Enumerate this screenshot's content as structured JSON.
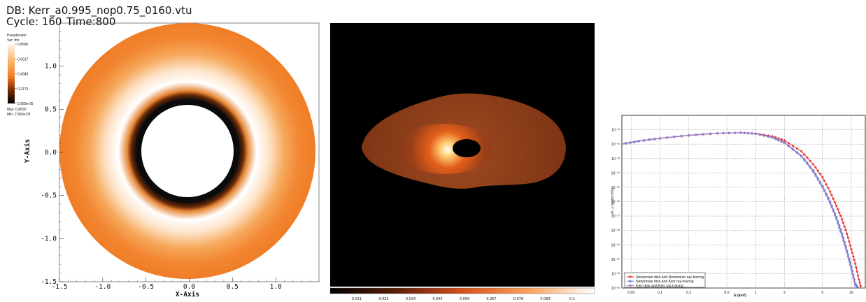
{
  "panels": {
    "visit": {
      "db_label": "DB: Kerr_a0.995_nop0.75_0160.vtu",
      "cycle_label": "Cycle: 160",
      "time_label": "Time:800",
      "legend": {
        "plot_type": "Pseudocolor",
        "var_label": "Var: rho",
        "ticks": [
          "0.8690",
          "0.6517",
          "0.4345",
          "0.2173",
          "2.960e-05"
        ],
        "max_label": "Max:  0.8690",
        "min_label": "Min:  2.960e-05"
      },
      "xlabel": "X-Axis",
      "ylabel": "Y-Axis",
      "xticks": [
        "-1.5",
        "-1.0",
        "-0.5",
        "0.0",
        "0.5",
        "1.0"
      ],
      "yticks": [
        "1.0",
        "0.5",
        "0.0",
        "-0.5",
        "-1.0",
        "-1.5"
      ],
      "colors": {
        "outer": "#f1822a",
        "mid": "#ffffff",
        "inner": "#0a0a0a"
      }
    },
    "ray": {
      "colorbar_ticks": [
        "0.011",
        "0.022",
        "0.034",
        "0.045",
        "0.056",
        "0.067",
        "0.078",
        "0.089",
        "0.1"
      ],
      "colors": {
        "background": "#000000",
        "disk": "#8a3a18",
        "hot": "#ffffff"
      }
    },
    "spectrum": {
      "xlabel": "E (keV)",
      "ylabel": "νF_ν (erg/cm²/s)",
      "ytick_labels": [
        "10⁻¹¹",
        "10⁻¹²",
        "10⁻¹³",
        "10⁻¹⁴",
        "10⁻¹⁵",
        "10⁻¹⁶",
        "10⁻¹⁷",
        "10⁻¹⁸",
        "10⁻¹⁹",
        "10⁻²⁰",
        "10⁻²¹",
        "10⁻²²"
      ],
      "xtick_labels": [
        "0.05",
        "0.1",
        "0.2",
        "0.5",
        "1",
        "2",
        "5",
        "10"
      ]
    }
  },
  "chart_data": [
    {
      "type": "heatmap",
      "title": "DB: Kerr_a0.995_nop0.75_0160.vtu",
      "xlabel": "X-Axis",
      "ylabel": "Y-Axis",
      "xlim": [
        -1.5,
        1.5
      ],
      "ylim": [
        -1.5,
        1.5
      ],
      "variable": "rho",
      "value_range": [
        2.96e-05,
        0.869
      ],
      "rings": [
        {
          "r_inner": 0.0,
          "r_outer": 0.53,
          "rho": null
        },
        {
          "r_inner": 0.53,
          "r_outer": 0.72,
          "rho": 2.96e-05
        },
        {
          "r_inner": 0.72,
          "r_outer": 1.1,
          "rho": 0.869
        },
        {
          "r_inner": 1.1,
          "r_outer": 1.5,
          "rho": 0.6517
        }
      ]
    },
    {
      "type": "heatmap",
      "colorbar_ticks": [
        0.011,
        0.022,
        0.034,
        0.045,
        0.056,
        0.067,
        0.078,
        0.089,
        0.1
      ]
    },
    {
      "type": "line",
      "xlabel": "E (keV)",
      "ylabel": "νF_ν (erg/cm²/s)",
      "xscale": "log",
      "yscale": "log",
      "xlim": [
        0.04,
        14
      ],
      "ylim": [
        1e-22,
        1e-10
      ],
      "series": [
        {
          "name": "Newtonian disk and Newtonian ray-tracing",
          "color": "#e8312a",
          "marker": "star",
          "x": [
            0.04,
            0.06,
            0.1,
            0.2,
            0.4,
            0.7,
            1.0,
            1.5,
            2.0,
            3.0,
            4.0,
            5.0,
            6.0,
            7.0,
            8.0,
            9.0,
            10.0,
            11.0,
            12.0,
            13.0
          ],
          "y": [
            1e-12,
            1.6e-12,
            2.5e-12,
            4e-12,
            5.6e-12,
            6.2e-12,
            5.5e-12,
            3.5e-12,
            1.8e-12,
            3.2e-13,
            4e-14,
            5e-15,
            5e-16,
            5e-17,
            6e-18,
            6e-19,
            5e-20,
            5e-21,
            4e-22,
            5e-23
          ]
        },
        {
          "name": "Newtonian disk and Kerr ray-tracing",
          "color": "#5f7fd0",
          "marker": "circle",
          "x": [
            0.04,
            0.06,
            0.1,
            0.2,
            0.4,
            0.7,
            1.0,
            1.5,
            2.0,
            3.0,
            4.0,
            5.0,
            6.0,
            7.0,
            8.0,
            9.0,
            10.0,
            11.0,
            12.0
          ],
          "y": [
            1e-12,
            1.6e-12,
            2.5e-12,
            4.1e-12,
            5.7e-12,
            6.2e-12,
            5.3e-12,
            3e-12,
            1.3e-12,
            1.6e-13,
            1.5e-14,
            1.2e-15,
            1e-16,
            8e-18,
            6e-19,
            4e-20,
            3e-21,
            2e-22,
            8e-23
          ]
        },
        {
          "name": "Kerr disk and Kerr ray-tracing",
          "color": "#9b7ac8",
          "marker": "star",
          "x": [
            0.04,
            0.06,
            0.1,
            0.2,
            0.4,
            0.7,
            1.0,
            1.5,
            2.0,
            3.0,
            4.0,
            5.0,
            6.0,
            7.0,
            8.0,
            9.0,
            10.0,
            11.0
          ],
          "y": [
            1.05e-12,
            1.7e-12,
            2.6e-12,
            4.2e-12,
            5.8e-12,
            6.3e-12,
            5.2e-12,
            2.8e-12,
            1.2e-12,
            1.4e-13,
            1.2e-14,
            1e-15,
            8e-17,
            6e-18,
            4e-19,
            3e-20,
            2e-21,
            1.5e-22
          ]
        }
      ],
      "legend": "bottom-left",
      "grid": true
    }
  ]
}
